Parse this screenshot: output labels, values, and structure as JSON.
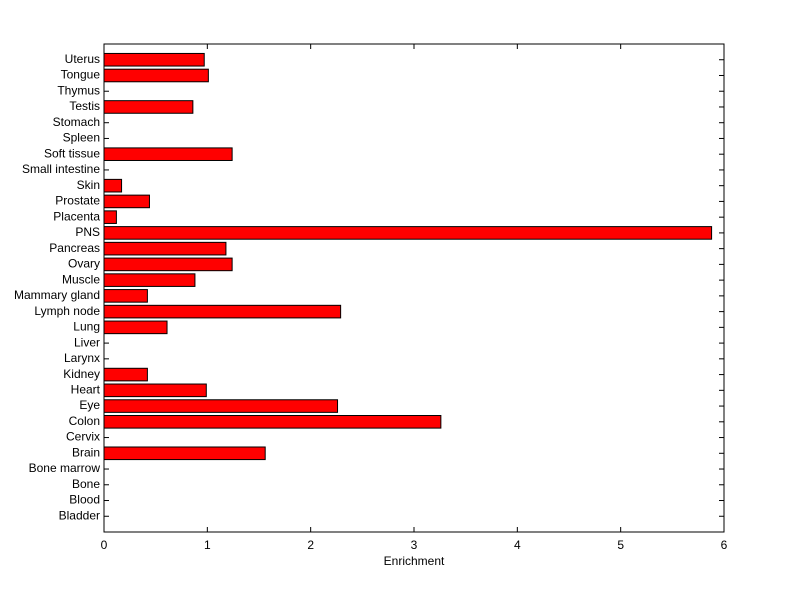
{
  "chart_data": {
    "type": "barh",
    "x_label": "Enrichment",
    "categories": [
      "Bladder",
      "Blood",
      "Bone",
      "Bone marrow",
      "Brain",
      "Cervix",
      "Colon",
      "Eye",
      "Heart",
      "Kidney",
      "Larynx",
      "Liver",
      "Lung",
      "Lymph node",
      "Mammary gland",
      "Muscle",
      "Ovary",
      "Pancreas",
      "PNS",
      "Placenta",
      "Prostate",
      "Skin",
      "Small intestine",
      "Soft tissue",
      "Spleen",
      "Stomach",
      "Testis",
      "Thymus",
      "Tongue",
      "Uterus"
    ],
    "values": [
      0,
      0,
      0,
      0,
      1.56,
      0,
      3.26,
      2.26,
      0.99,
      0.42,
      0,
      0,
      0.61,
      2.29,
      0.42,
      0.88,
      1.24,
      1.18,
      5.88,
      0.12,
      0.44,
      0.17,
      0,
      1.24,
      0,
      0,
      0.86,
      0,
      1.01,
      0.97
    ],
    "color": "#ff0000",
    "xlim": [
      0,
      6
    ],
    "xticks": [
      0,
      1,
      2,
      3,
      4,
      5,
      6
    ],
    "grid": false
  }
}
